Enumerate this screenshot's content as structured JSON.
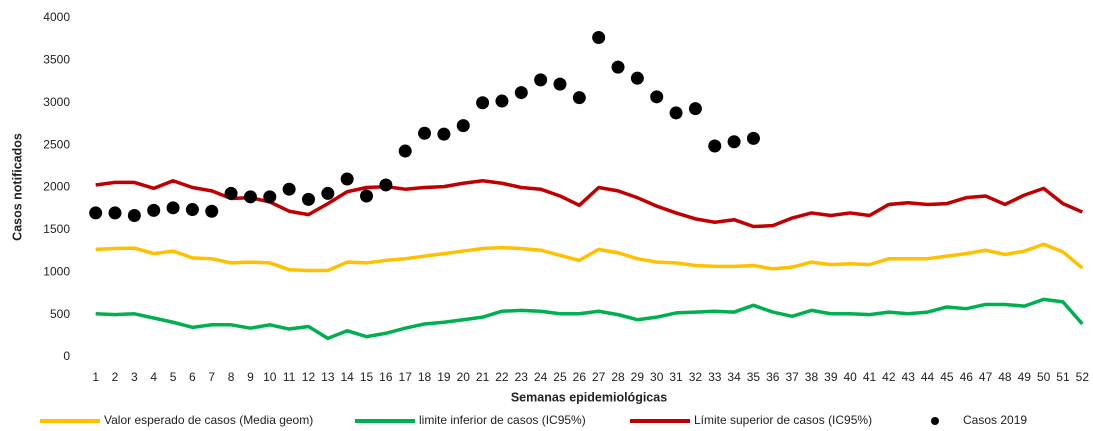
{
  "chart_data": {
    "type": "line",
    "x_label": "Semanas epidemiológicas",
    "y_label": "Casos notificados",
    "categories": [
      "1",
      "2",
      "3",
      "4",
      "5",
      "6",
      "7",
      "8",
      "9",
      "10",
      "11",
      "12",
      "13",
      "14",
      "15",
      "16",
      "17",
      "18",
      "19",
      "20",
      "21",
      "22",
      "23",
      "24",
      "25",
      "26",
      "27",
      "28",
      "29",
      "30",
      "31",
      "32",
      "33",
      "34",
      "35",
      "36",
      "37",
      "38",
      "39",
      "40",
      "41",
      "42",
      "43",
      "44",
      "45",
      "46",
      "47",
      "48",
      "49",
      "50",
      "51",
      "52"
    ],
    "ylim": [
      0,
      4000
    ],
    "yticks": [
      0,
      500,
      1000,
      1500,
      2000,
      2500,
      3000,
      3500,
      4000
    ],
    "legend": "bottom",
    "series": [
      {
        "name": "Valor esperado de casos (Media geom)",
        "color": "#FFC000",
        "type": "line",
        "values": [
          1270,
          1280,
          1285,
          1220,
          1250,
          1170,
          1160,
          1110,
          1120,
          1110,
          1030,
          1020,
          1020,
          1120,
          1110,
          1140,
          1160,
          1190,
          1220,
          1250,
          1280,
          1290,
          1280,
          1260,
          1200,
          1140,
          1270,
          1230,
          1160,
          1120,
          1110,
          1080,
          1070,
          1070,
          1080,
          1040,
          1060,
          1120,
          1090,
          1100,
          1090,
          1160,
          1160,
          1160,
          1190,
          1220,
          1260,
          1210,
          1250,
          1330,
          1240,
          1050
        ]
      },
      {
        "name": "limite inferior de casos (IC95%)",
        "color": "#00B050",
        "type": "line",
        "values": [
          510,
          500,
          510,
          460,
          410,
          350,
          380,
          380,
          340,
          380,
          330,
          360,
          220,
          310,
          240,
          280,
          340,
          390,
          410,
          440,
          470,
          540,
          550,
          540,
          510,
          510,
          540,
          500,
          440,
          470,
          520,
          530,
          540,
          530,
          610,
          530,
          480,
          550,
          510,
          510,
          500,
          530,
          510,
          530,
          590,
          570,
          620,
          620,
          600,
          680,
          650,
          390
        ]
      },
      {
        "name": "Límite superior de casos (IC95%)",
        "color": "#C00000",
        "type": "line",
        "values": [
          2030,
          2060,
          2060,
          1990,
          2080,
          2000,
          1960,
          1870,
          1880,
          1830,
          1720,
          1680,
          1810,
          1950,
          2000,
          2010,
          1980,
          2000,
          2010,
          2050,
          2080,
          2050,
          2000,
          1980,
          1900,
          1790,
          2000,
          1960,
          1880,
          1780,
          1700,
          1630,
          1590,
          1620,
          1540,
          1550,
          1640,
          1700,
          1670,
          1700,
          1670,
          1800,
          1820,
          1800,
          1810,
          1880,
          1900,
          1800,
          1910,
          1990,
          1810,
          1710
        ]
      },
      {
        "name": "Casos 2019",
        "color": "#000000",
        "type": "scatter",
        "values": [
          1700,
          1700,
          1670,
          1730,
          1760,
          1740,
          1720,
          1930,
          1890,
          1890,
          1980,
          1860,
          1930,
          2100,
          1900,
          2030,
          2430,
          2640,
          2630,
          2730,
          3000,
          3020,
          3120,
          3270,
          3220,
          3060,
          3770,
          3420,
          3290,
          3070,
          2880,
          2930,
          2490,
          2540,
          2580,
          null,
          null,
          null,
          null,
          null,
          null,
          null,
          null,
          null,
          null,
          null,
          null,
          null,
          null,
          null,
          null,
          null
        ]
      }
    ]
  }
}
